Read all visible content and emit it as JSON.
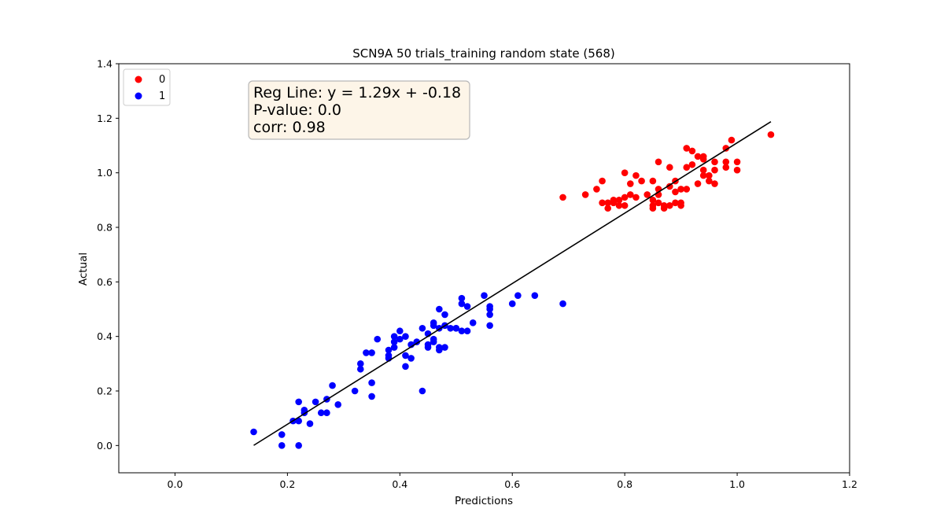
{
  "chart_data": {
    "type": "scatter",
    "title": "SCN9A 50 trials_training random state (568)",
    "xlabel": "Predictions",
    "ylabel": "Actual",
    "xlim": [
      -0.1,
      1.2
    ],
    "ylim": [
      -0.1,
      1.4
    ],
    "xticks": [
      0.0,
      0.2,
      0.4,
      0.6,
      0.8,
      1.0,
      1.2
    ],
    "yticks": [
      0.0,
      0.2,
      0.4,
      0.6,
      0.8,
      1.0,
      1.2,
      1.4
    ],
    "xtick_labels": [
      "0.0",
      "0.2",
      "0.4",
      "0.6",
      "0.8",
      "1.0",
      "1.2"
    ],
    "ytick_labels": [
      "0.0",
      "0.2",
      "0.4",
      "0.6",
      "0.8",
      "1.0",
      "1.2",
      "1.4"
    ],
    "grid": false,
    "legend_position": "top-left",
    "annotation": {
      "lines": [
        "Reg Line: y = 1.29x + -0.18",
        "P-value: 0.0",
        "corr: 0.98"
      ],
      "background": "#fdf5e8",
      "border": "#b8b8b8"
    },
    "regression_line": {
      "slope": 1.29,
      "intercept": -0.18,
      "x_range": [
        0.14,
        1.06
      ],
      "color": "#000000"
    },
    "series": [
      {
        "name": "0",
        "color": "#ff0000",
        "points": [
          [
            0.69,
            0.91
          ],
          [
            0.73,
            0.92
          ],
          [
            0.75,
            0.94
          ],
          [
            0.76,
            0.97
          ],
          [
            0.76,
            0.89
          ],
          [
            0.77,
            0.87
          ],
          [
            0.77,
            0.89
          ],
          [
            0.78,
            0.9
          ],
          [
            0.78,
            0.89
          ],
          [
            0.79,
            0.88
          ],
          [
            0.79,
            0.9
          ],
          [
            0.8,
            0.88
          ],
          [
            0.8,
            0.91
          ],
          [
            0.8,
            1.0
          ],
          [
            0.81,
            0.96
          ],
          [
            0.81,
            0.92
          ],
          [
            0.82,
            0.99
          ],
          [
            0.82,
            0.91
          ],
          [
            0.83,
            0.97
          ],
          [
            0.84,
            0.92
          ],
          [
            0.85,
            0.9
          ],
          [
            0.85,
            0.88
          ],
          [
            0.85,
            0.87
          ],
          [
            0.85,
            0.97
          ],
          [
            0.86,
            0.94
          ],
          [
            0.86,
            0.92
          ],
          [
            0.86,
            1.04
          ],
          [
            0.86,
            0.89
          ],
          [
            0.87,
            0.87
          ],
          [
            0.87,
            0.88
          ],
          [
            0.88,
            0.88
          ],
          [
            0.88,
            1.02
          ],
          [
            0.88,
            0.95
          ],
          [
            0.89,
            0.93
          ],
          [
            0.89,
            0.97
          ],
          [
            0.89,
            0.89
          ],
          [
            0.9,
            0.88
          ],
          [
            0.9,
            0.89
          ],
          [
            0.9,
            0.94
          ],
          [
            0.91,
            1.02
          ],
          [
            0.91,
            0.94
          ],
          [
            0.91,
            1.09
          ],
          [
            0.92,
            1.08
          ],
          [
            0.92,
            1.03
          ],
          [
            0.93,
            1.06
          ],
          [
            0.93,
            0.96
          ],
          [
            0.94,
            1.06
          ],
          [
            0.94,
            1.05
          ],
          [
            0.94,
            1.01
          ],
          [
            0.94,
            0.99
          ],
          [
            0.95,
            0.97
          ],
          [
            0.95,
            0.99
          ],
          [
            0.96,
            1.04
          ],
          [
            0.96,
            1.01
          ],
          [
            0.96,
            0.96
          ],
          [
            0.98,
            1.02
          ],
          [
            0.98,
            1.04
          ],
          [
            0.98,
            1.09
          ],
          [
            0.99,
            1.12
          ],
          [
            1.0,
            1.01
          ],
          [
            1.0,
            1.04
          ],
          [
            1.06,
            1.14
          ]
        ]
      },
      {
        "name": "1",
        "color": "#0000ff",
        "points": [
          [
            0.14,
            0.05
          ],
          [
            0.19,
            0.04
          ],
          [
            0.19,
            0.0
          ],
          [
            0.21,
            0.09
          ],
          [
            0.22,
            0.09
          ],
          [
            0.22,
            0.16
          ],
          [
            0.22,
            0.0
          ],
          [
            0.23,
            0.12
          ],
          [
            0.23,
            0.13
          ],
          [
            0.24,
            0.08
          ],
          [
            0.25,
            0.16
          ],
          [
            0.26,
            0.12
          ],
          [
            0.27,
            0.17
          ],
          [
            0.27,
            0.12
          ],
          [
            0.28,
            0.22
          ],
          [
            0.29,
            0.15
          ],
          [
            0.32,
            0.2
          ],
          [
            0.33,
            0.28
          ],
          [
            0.33,
            0.3
          ],
          [
            0.34,
            0.34
          ],
          [
            0.35,
            0.34
          ],
          [
            0.35,
            0.23
          ],
          [
            0.35,
            0.18
          ],
          [
            0.36,
            0.39
          ],
          [
            0.38,
            0.32
          ],
          [
            0.38,
            0.33
          ],
          [
            0.38,
            0.35
          ],
          [
            0.39,
            0.4
          ],
          [
            0.39,
            0.38
          ],
          [
            0.39,
            0.36
          ],
          [
            0.4,
            0.42
          ],
          [
            0.4,
            0.39
          ],
          [
            0.41,
            0.4
          ],
          [
            0.41,
            0.33
          ],
          [
            0.41,
            0.29
          ],
          [
            0.42,
            0.37
          ],
          [
            0.42,
            0.32
          ],
          [
            0.43,
            0.38
          ],
          [
            0.44,
            0.43
          ],
          [
            0.44,
            0.2
          ],
          [
            0.45,
            0.41
          ],
          [
            0.45,
            0.36
          ],
          [
            0.45,
            0.37
          ],
          [
            0.46,
            0.44
          ],
          [
            0.46,
            0.45
          ],
          [
            0.46,
            0.38
          ],
          [
            0.46,
            0.39
          ],
          [
            0.47,
            0.35
          ],
          [
            0.47,
            0.36
          ],
          [
            0.47,
            0.5
          ],
          [
            0.47,
            0.43
          ],
          [
            0.48,
            0.44
          ],
          [
            0.48,
            0.36
          ],
          [
            0.48,
            0.48
          ],
          [
            0.49,
            0.43
          ],
          [
            0.5,
            0.43
          ],
          [
            0.5,
            0.43
          ],
          [
            0.51,
            0.42
          ],
          [
            0.51,
            0.52
          ],
          [
            0.51,
            0.54
          ],
          [
            0.52,
            0.42
          ],
          [
            0.52,
            0.51
          ],
          [
            0.53,
            0.45
          ],
          [
            0.55,
            0.55
          ],
          [
            0.56,
            0.51
          ],
          [
            0.56,
            0.48
          ],
          [
            0.56,
            0.44
          ],
          [
            0.56,
            0.5
          ],
          [
            0.6,
            0.52
          ],
          [
            0.61,
            0.55
          ],
          [
            0.64,
            0.55
          ],
          [
            0.69,
            0.52
          ]
        ]
      }
    ]
  }
}
